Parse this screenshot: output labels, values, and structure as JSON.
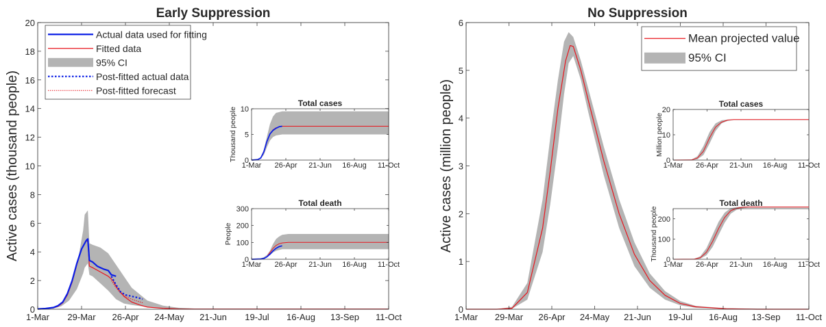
{
  "chart_data": [
    {
      "type": "line",
      "title": "Early Suppression",
      "ylabel": "Active cases (thousand people)",
      "ylim": [
        0,
        20
      ],
      "yticks": [
        0,
        2,
        4,
        6,
        8,
        10,
        12,
        14,
        16,
        18,
        20
      ],
      "xtick_labels": [
        "1-Mar",
        "29-Mar",
        "26-Apr",
        "24-May",
        "21-Jun",
        "19-Jul",
        "16-Aug",
        "13-Sep",
        "11-Oct"
      ],
      "x_unit": "days from 1-Mar",
      "xlim": [
        0,
        224
      ],
      "legend": {
        "placement": "top-left",
        "entries": [
          "Actual data used for fitting",
          "Fitted data",
          "95% CI",
          "Post-fitted actual data",
          "Post-fitted forecast"
        ]
      },
      "series": [
        {
          "name": "95% CI",
          "x": [
            0,
            10,
            15,
            20,
            25,
            29,
            30,
            32,
            33,
            35,
            40,
            45,
            50,
            55,
            60,
            70,
            80,
            90,
            100,
            224
          ],
          "lower": [
            0,
            0.05,
            0.2,
            0.6,
            1.4,
            2.5,
            2.9,
            3.2,
            2.4,
            2.3,
            1.8,
            1.3,
            0.7,
            0.4,
            0.3,
            0.15,
            0.05,
            0.02,
            0,
            0
          ],
          "upper": [
            0.05,
            0.1,
            0.35,
            1.2,
            3.0,
            5.5,
            6.6,
            6.9,
            4.6,
            4.5,
            4.3,
            3.9,
            3.1,
            2.3,
            1.5,
            0.6,
            0.25,
            0.1,
            0.05,
            0.05
          ]
        },
        {
          "name": "Fitted data",
          "x": [
            0,
            5,
            10,
            13,
            16,
            19,
            22,
            25,
            28,
            31,
            32,
            33,
            35,
            40,
            45,
            48,
            50,
            55,
            60,
            65,
            70,
            80,
            90,
            100,
            224
          ],
          "values": [
            0.02,
            0.05,
            0.1,
            0.2,
            0.45,
            1.0,
            1.9,
            3.1,
            4.2,
            4.8,
            4.7,
            3.0,
            2.9,
            2.6,
            2.3,
            2.0,
            1.6,
            0.9,
            0.5,
            0.3,
            0.15,
            0.06,
            0.02,
            0.01,
            0.01
          ]
        },
        {
          "name": "Actual data used for fitting",
          "x": [
            0,
            5,
            10,
            13,
            16,
            19,
            22,
            25,
            28,
            30,
            31,
            32,
            33,
            35,
            38,
            40,
            42,
            45,
            47,
            50
          ],
          "values": [
            0.02,
            0.05,
            0.12,
            0.25,
            0.5,
            1.1,
            2.0,
            3.2,
            4.2,
            4.6,
            4.8,
            4.9,
            3.4,
            3.3,
            3.0,
            2.9,
            2.8,
            2.7,
            2.4,
            2.3
          ]
        },
        {
          "name": "Post-fitted actual data",
          "x": [
            47,
            50,
            53,
            56,
            60,
            64,
            67
          ],
          "values": [
            2.3,
            1.7,
            1.2,
            1.0,
            0.9,
            0.8,
            0.7
          ]
        },
        {
          "name": "Post-fitted forecast",
          "x": [
            47,
            50,
            53,
            56,
            60,
            64,
            67
          ],
          "values": [
            2.0,
            1.5,
            1.1,
            0.9,
            0.7,
            0.55,
            0.45
          ]
        }
      ],
      "insets": [
        {
          "title": "Total cases",
          "ylabel": "Thousand people",
          "ylim": [
            0,
            10
          ],
          "yticks": [
            0,
            5,
            10
          ],
          "xtick_labels": [
            "1-Mar",
            "26-Apr",
            "21-Jun",
            "16-Aug",
            "11-Oct"
          ],
          "series": [
            {
              "name": "95% CI",
              "x": [
                0,
                10,
                15,
                20,
                25,
                30,
                35,
                40,
                50,
                60,
                224
              ],
              "lower": [
                0,
                0.05,
                0.3,
                1.0,
                2.5,
                3.8,
                4.5,
                4.8,
                5.0,
                5.0,
                5.0
              ],
              "upper": [
                0.02,
                0.15,
                0.6,
                2.0,
                4.5,
                7.0,
                8.5,
                9.2,
                9.5,
                9.5,
                9.5
              ]
            },
            {
              "name": "Fitted data",
              "x": [
                0,
                10,
                15,
                20,
                25,
                30,
                35,
                40,
                45,
                50,
                60,
                224
              ],
              "values": [
                0,
                0.1,
                0.4,
                1.5,
                3.5,
                5.0,
                5.9,
                6.3,
                6.5,
                6.6,
                6.6,
                6.6
              ]
            },
            {
              "name": "Actual data used for fitting",
              "x": [
                0,
                10,
                15,
                20,
                25,
                30,
                35,
                40,
                45,
                50
              ],
              "values": [
                0,
                0.1,
                0.4,
                1.6,
                3.6,
                5.1,
                5.8,
                6.2,
                6.5,
                6.6
              ]
            }
          ]
        },
        {
          "title": "Total death",
          "ylabel": "People",
          "ylim": [
            0,
            300
          ],
          "yticks": [
            0,
            100,
            200,
            300
          ],
          "xtick_labels": [
            "1-Mar",
            "26-Apr",
            "21-Jun",
            "16-Aug",
            "11-Oct"
          ],
          "series": [
            {
              "name": "95% CI",
              "x": [
                0,
                15,
                20,
                25,
                30,
                35,
                40,
                45,
                50,
                60,
                224
              ],
              "lower": [
                0,
                0,
                5,
                10,
                25,
                40,
                50,
                55,
                60,
                60,
                60
              ],
              "upper": [
                0,
                5,
                12,
                25,
                50,
                90,
                120,
                135,
                145,
                150,
                150
              ]
            },
            {
              "name": "Fitted data",
              "x": [
                0,
                15,
                20,
                25,
                30,
                35,
                40,
                45,
                50,
                60,
                80,
                224
              ],
              "values": [
                0,
                2,
                5,
                15,
                40,
                65,
                82,
                92,
                97,
                100,
                100,
                100
              ]
            },
            {
              "name": "Actual data used for fitting",
              "x": [
                0,
                15,
                20,
                25,
                30,
                35,
                40,
                45,
                50
              ],
              "values": [
                0,
                2,
                5,
                14,
                30,
                50,
                65,
                75,
                80
              ]
            }
          ]
        }
      ]
    },
    {
      "type": "line",
      "title": "No Suppression",
      "ylabel": "Active cases (million people)",
      "ylim": [
        0,
        6
      ],
      "yticks": [
        0,
        1,
        2,
        3,
        4,
        5,
        6
      ],
      "xtick_labels": [
        "1-Mar",
        "29-Mar",
        "26-Apr",
        "24-May",
        "21-Jun",
        "19-Jul",
        "16-Aug",
        "13-Sep",
        "11-Oct"
      ],
      "x_unit": "days from 1-Mar",
      "xlim": [
        0,
        224
      ],
      "legend": {
        "placement": "top-right",
        "entries": [
          "Mean projected value",
          "95% CI"
        ]
      },
      "series": [
        {
          "name": "95% CI",
          "x": [
            0,
            20,
            30,
            40,
            50,
            55,
            60,
            64,
            67,
            70,
            75,
            80,
            90,
            100,
            110,
            120,
            130,
            140,
            150,
            170,
            190,
            224
          ],
          "lower": [
            0,
            0,
            0.01,
            0.2,
            1.2,
            2.2,
            3.4,
            4.5,
            5.15,
            5.3,
            4.8,
            4.1,
            2.8,
            1.7,
            0.9,
            0.45,
            0.2,
            0.08,
            0.03,
            0.01,
            0,
            0
          ],
          "upper": [
            0,
            0,
            0.05,
            0.55,
            2.3,
            3.6,
            4.8,
            5.6,
            5.8,
            5.7,
            5.2,
            4.6,
            3.4,
            2.3,
            1.4,
            0.75,
            0.38,
            0.17,
            0.07,
            0.02,
            0.01,
            0
          ]
        },
        {
          "name": "Mean projected value",
          "x": [
            0,
            20,
            30,
            40,
            50,
            55,
            60,
            65,
            68,
            70,
            75,
            80,
            90,
            100,
            110,
            120,
            130,
            140,
            150,
            170,
            190,
            224
          ],
          "values": [
            0,
            0,
            0.02,
            0.35,
            1.7,
            2.9,
            4.2,
            5.2,
            5.52,
            5.5,
            5.0,
            4.35,
            3.1,
            2.0,
            1.15,
            0.6,
            0.29,
            0.12,
            0.05,
            0.01,
            0,
            0
          ]
        }
      ],
      "insets": [
        {
          "title": "Total cases",
          "ylabel": "Million people",
          "ylim": [
            0,
            20
          ],
          "yticks": [
            0,
            10,
            20
          ],
          "xtick_labels": [
            "1-Mar",
            "26-Apr",
            "21-Jun",
            "16-Aug",
            "11-Oct"
          ],
          "series": [
            {
              "name": "95% CI",
              "x": [
                0,
                30,
                40,
                50,
                60,
                70,
                80,
                90,
                100,
                224
              ],
              "lower": [
                0,
                0,
                0.3,
                2.0,
                6.5,
                11.5,
                14.5,
                15.5,
                15.8,
                15.8
              ],
              "upper": [
                0,
                0.1,
                1.5,
                5.5,
                11.0,
                14.5,
                15.7,
                16.0,
                16.0,
                16.0
              ]
            },
            {
              "name": "Mean projected value",
              "x": [
                0,
                30,
                40,
                50,
                60,
                70,
                80,
                90,
                100,
                224
              ],
              "values": [
                0,
                0.05,
                0.8,
                3.5,
                8.7,
                13.0,
                15.0,
                15.8,
                16.0,
                16.0
              ]
            }
          ]
        },
        {
          "title": "Total death",
          "ylabel": "Thousand people",
          "ylim": [
            0,
            250
          ],
          "yticks": [
            0,
            100,
            200
          ],
          "xtick_labels": [
            "1-Mar",
            "26-Apr",
            "21-Jun",
            "16-Aug",
            "11-Oct"
          ],
          "series": [
            {
              "name": "95% CI",
              "x": [
                0,
                35,
                45,
                55,
                65,
                75,
                85,
                95,
                105,
                115,
                125,
                224
              ],
              "lower": [
                0,
                0,
                3,
                20,
                60,
                120,
                180,
                225,
                245,
                252,
                255,
                255
              ],
              "upper": [
                0,
                2,
                15,
                55,
                120,
                185,
                230,
                252,
                258,
                260,
                260,
                260
              ]
            },
            {
              "name": "Mean projected value",
              "x": [
                0,
                35,
                45,
                55,
                65,
                75,
                85,
                95,
                105,
                115,
                125,
                224
              ],
              "values": [
                0,
                1,
                8,
                35,
                88,
                152,
                206,
                240,
                252,
                257,
                258,
                258
              ]
            }
          ]
        }
      ]
    }
  ]
}
